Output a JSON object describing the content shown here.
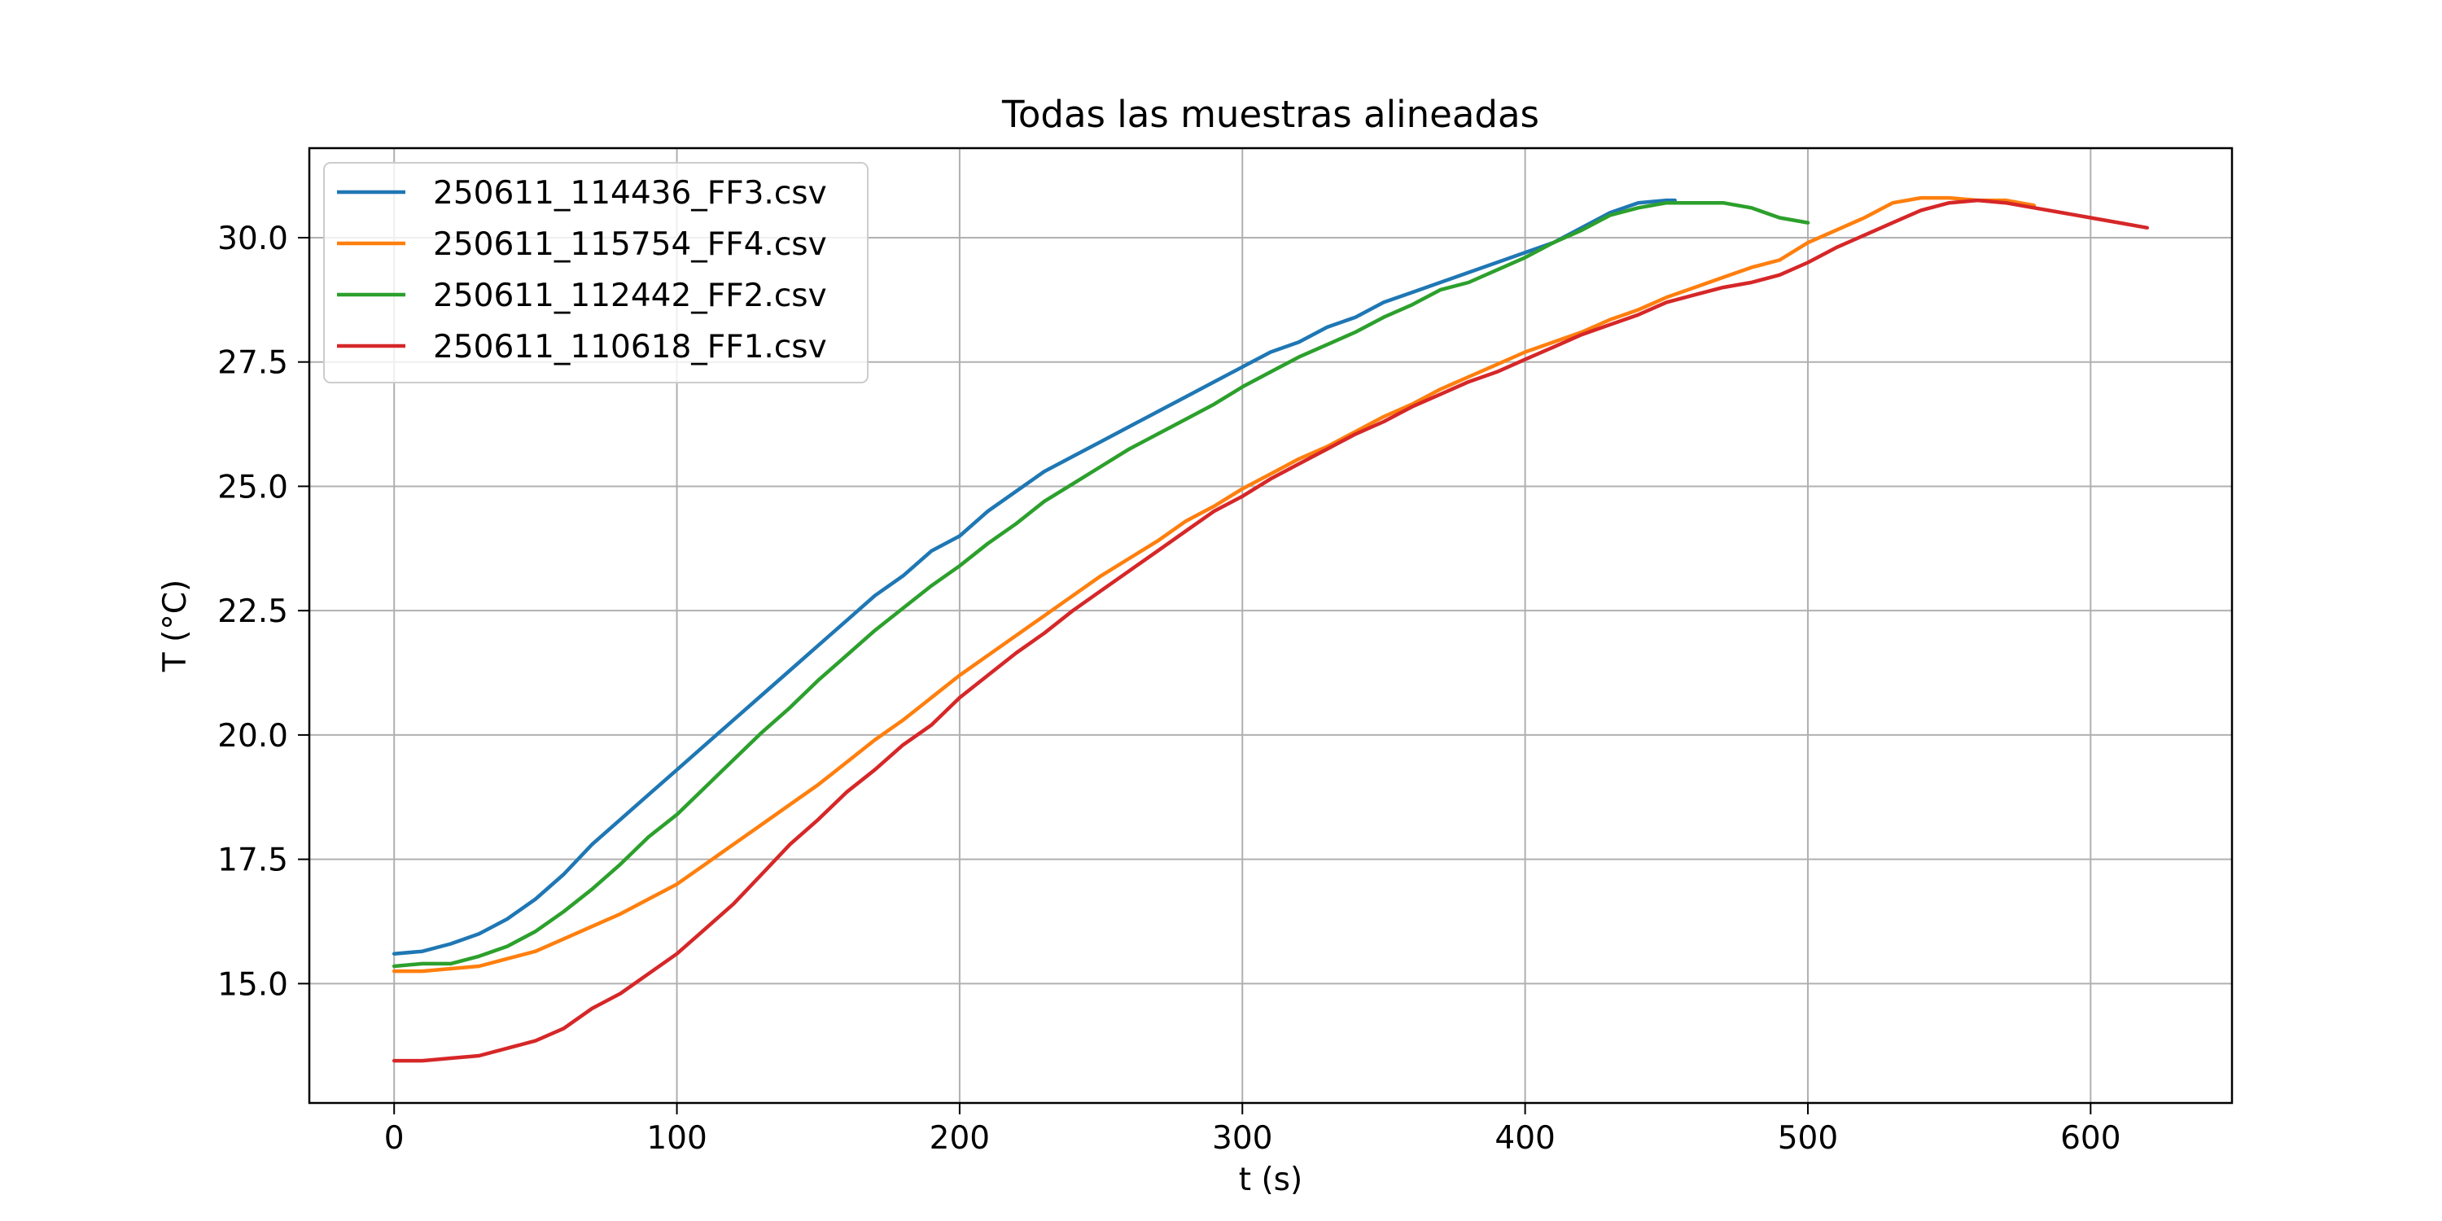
{
  "chart_data": {
    "type": "line",
    "title": "Todas las muestras alineadas",
    "xlabel": "t (s)",
    "ylabel": "T (°C)",
    "xlim": [
      -30,
      650
    ],
    "ylim": [
      12.6,
      31.8
    ],
    "xticks": [
      0,
      100,
      200,
      300,
      400,
      500,
      600
    ],
    "yticks": [
      15.0,
      17.5,
      20.0,
      22.5,
      25.0,
      27.5,
      30.0
    ],
    "grid": true,
    "legend_position": "upper-left",
    "series": [
      {
        "name": "250611_114436_FF3.csv",
        "color": "#1f77b4",
        "x": [
          0,
          10,
          20,
          30,
          40,
          50,
          60,
          70,
          80,
          90,
          100,
          110,
          120,
          130,
          140,
          150,
          160,
          170,
          180,
          190,
          200,
          210,
          220,
          230,
          240,
          250,
          260,
          270,
          280,
          290,
          300,
          310,
          320,
          330,
          340,
          350,
          360,
          370,
          380,
          390,
          400,
          410,
          420,
          430,
          440,
          450,
          453
        ],
        "y": [
          15.6,
          15.65,
          15.8,
          16.0,
          16.3,
          16.7,
          17.2,
          17.8,
          18.3,
          18.8,
          19.3,
          19.8,
          20.3,
          20.8,
          21.3,
          21.8,
          22.3,
          22.8,
          23.2,
          23.7,
          24.0,
          24.5,
          24.9,
          25.3,
          25.6,
          25.9,
          26.2,
          26.5,
          26.8,
          27.1,
          27.4,
          27.7,
          27.9,
          28.2,
          28.4,
          28.7,
          28.9,
          29.1,
          29.3,
          29.5,
          29.7,
          29.9,
          30.2,
          30.5,
          30.7,
          30.75,
          30.75
        ]
      },
      {
        "name": "250611_115754_FF4.csv",
        "color": "#ff7f0e",
        "x": [
          0,
          10,
          20,
          30,
          40,
          50,
          60,
          70,
          80,
          90,
          100,
          110,
          120,
          130,
          140,
          150,
          160,
          170,
          180,
          190,
          200,
          210,
          220,
          230,
          240,
          250,
          260,
          270,
          280,
          290,
          300,
          310,
          320,
          330,
          340,
          350,
          360,
          370,
          380,
          390,
          400,
          410,
          420,
          430,
          440,
          450,
          460,
          470,
          480,
          490,
          500,
          510,
          520,
          530,
          540,
          550,
          560,
          570,
          580
        ],
        "y": [
          15.25,
          15.25,
          15.3,
          15.35,
          15.5,
          15.65,
          15.9,
          16.15,
          16.4,
          16.7,
          17.0,
          17.4,
          17.8,
          18.2,
          18.6,
          19.0,
          19.45,
          19.9,
          20.3,
          20.75,
          21.2,
          21.6,
          22.0,
          22.4,
          22.8,
          23.2,
          23.55,
          23.9,
          24.3,
          24.6,
          24.95,
          25.25,
          25.55,
          25.8,
          26.1,
          26.4,
          26.65,
          26.95,
          27.2,
          27.45,
          27.7,
          27.9,
          28.1,
          28.35,
          28.55,
          28.8,
          29.0,
          29.2,
          29.4,
          29.55,
          29.9,
          30.15,
          30.4,
          30.7,
          30.8,
          30.8,
          30.75,
          30.75,
          30.65
        ]
      },
      {
        "name": "250611_112442_FF2.csv",
        "color": "#2ca02c",
        "x": [
          0,
          10,
          20,
          30,
          40,
          50,
          60,
          70,
          80,
          90,
          100,
          110,
          120,
          130,
          140,
          150,
          160,
          170,
          180,
          190,
          200,
          210,
          220,
          230,
          240,
          250,
          260,
          270,
          280,
          290,
          300,
          310,
          320,
          330,
          340,
          350,
          360,
          370,
          380,
          390,
          400,
          410,
          420,
          430,
          440,
          450,
          460,
          470,
          480,
          490,
          500
        ],
        "y": [
          15.35,
          15.4,
          15.4,
          15.55,
          15.75,
          16.05,
          16.45,
          16.9,
          17.4,
          17.95,
          18.4,
          18.95,
          19.5,
          20.05,
          20.55,
          21.1,
          21.6,
          22.1,
          22.55,
          23.0,
          23.4,
          23.85,
          24.25,
          24.7,
          25.05,
          25.4,
          25.75,
          26.05,
          26.35,
          26.65,
          27.0,
          27.3,
          27.6,
          27.85,
          28.1,
          28.4,
          28.65,
          28.95,
          29.1,
          29.35,
          29.6,
          29.9,
          30.15,
          30.45,
          30.6,
          30.7,
          30.7,
          30.7,
          30.6,
          30.4,
          30.3
        ]
      },
      {
        "name": "250611_110618_FF1.csv",
        "color": "#d62728",
        "x": [
          0,
          10,
          20,
          30,
          40,
          50,
          60,
          70,
          80,
          90,
          100,
          110,
          120,
          130,
          140,
          150,
          160,
          170,
          180,
          190,
          200,
          210,
          220,
          230,
          240,
          250,
          260,
          270,
          280,
          290,
          300,
          310,
          320,
          330,
          340,
          350,
          360,
          370,
          380,
          390,
          400,
          410,
          420,
          430,
          440,
          450,
          460,
          470,
          480,
          490,
          500,
          510,
          520,
          530,
          540,
          550,
          560,
          570,
          580,
          590,
          600,
          610,
          620
        ],
        "y": [
          13.45,
          13.45,
          13.5,
          13.55,
          13.7,
          13.85,
          14.1,
          14.5,
          14.8,
          15.2,
          15.6,
          16.1,
          16.6,
          17.2,
          17.8,
          18.3,
          18.85,
          19.3,
          19.8,
          20.2,
          20.75,
          21.2,
          21.65,
          22.05,
          22.5,
          22.9,
          23.3,
          23.7,
          24.1,
          24.5,
          24.8,
          25.15,
          25.45,
          25.75,
          26.05,
          26.3,
          26.6,
          26.85,
          27.1,
          27.3,
          27.55,
          27.8,
          28.05,
          28.25,
          28.45,
          28.7,
          28.85,
          29.0,
          29.1,
          29.25,
          29.5,
          29.8,
          30.05,
          30.3,
          30.55,
          30.7,
          30.75,
          30.7,
          30.6,
          30.5,
          30.4,
          30.3,
          30.2
        ]
      }
    ]
  }
}
